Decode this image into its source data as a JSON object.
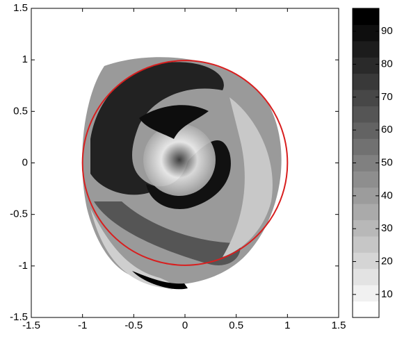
{
  "chart_data": {
    "type": "heatmap",
    "xlim": [
      -1.5,
      1.5
    ],
    "ylim": [
      -1.5,
      1.5
    ],
    "xticks": [
      -1.5,
      -1,
      -0.5,
      0,
      0.5,
      1,
      1.5
    ],
    "yticks": [
      -1.5,
      -1,
      -0.5,
      0,
      0.5,
      1,
      1.5
    ],
    "circle": {
      "center": [
        0,
        0
      ],
      "radius": 1,
      "color": "#d81e1e"
    },
    "colorbar": {
      "clim": [
        3,
        97
      ],
      "levels": 19,
      "ticks": [
        10,
        20,
        30,
        40,
        50,
        60,
        70,
        80,
        90
      ]
    }
  }
}
